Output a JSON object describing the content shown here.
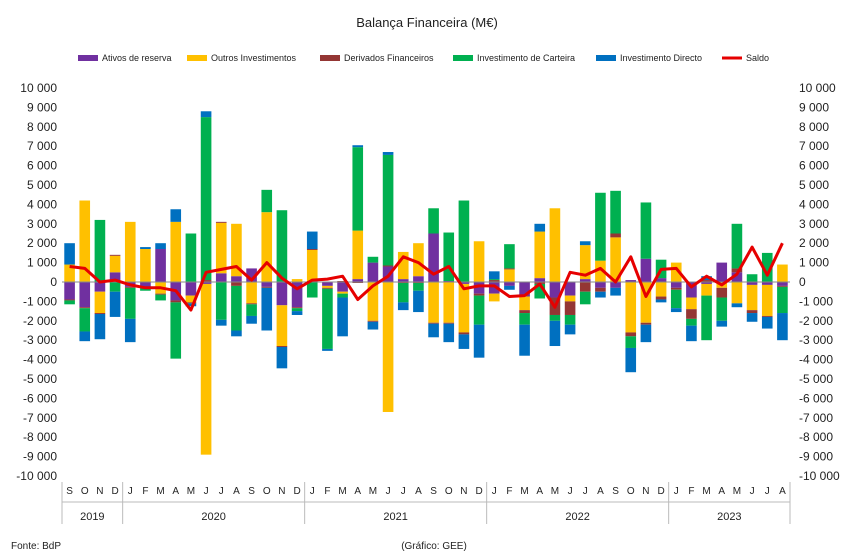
{
  "chart_data": {
    "type": "bar",
    "title": "Balança Financeira (M€)",
    "source": "Fonte: BdP",
    "credit": "(Gráfico: GEE)",
    "ylim": [
      -10000,
      10000
    ],
    "yticks": [
      -10000,
      -9000,
      -8000,
      -7000,
      -6000,
      -5000,
      -4000,
      -3000,
      -2000,
      -1000,
      0,
      1000,
      2000,
      3000,
      4000,
      5000,
      6000,
      7000,
      8000,
      9000,
      10000
    ],
    "ytick_labels": [
      "-10 000",
      "-9 000",
      "-8 000",
      "-7 000",
      "-6 000",
      "-5 000",
      "-4 000",
      "-3 000",
      "-2 000",
      "-1 000",
      "0",
      "1 000",
      "2 000",
      "3 000",
      "4 000",
      "5 000",
      "6 000",
      "7 000",
      "8 000",
      "9 000",
      "10 000"
    ],
    "legend_position": "top",
    "grid": false,
    "categories": [
      "S",
      "O",
      "N",
      "D",
      "J",
      "F",
      "M",
      "A",
      "M",
      "J",
      "J",
      "A",
      "S",
      "O",
      "N",
      "D",
      "J",
      "F",
      "M",
      "A",
      "M",
      "J",
      "J",
      "A",
      "S",
      "O",
      "N",
      "D",
      "J",
      "F",
      "M",
      "A",
      "M",
      "J",
      "J",
      "A",
      "S",
      "O",
      "N",
      "D",
      "J",
      "F",
      "M",
      "A",
      "M",
      "J",
      "J",
      "A"
    ],
    "years": [
      {
        "label": "2019",
        "start": 0,
        "end": 4
      },
      {
        "label": "2020",
        "start": 4,
        "end": 16
      },
      {
        "label": "2021",
        "start": 16,
        "end": 28
      },
      {
        "label": "2022",
        "start": 28,
        "end": 40
      },
      {
        "label": "2023",
        "start": 40,
        "end": 48
      }
    ],
    "series": [
      {
        "name": "Ativos de reserva",
        "color": "#7030A0",
        "values": [
          -900,
          -1300,
          -500,
          500,
          -250,
          -250,
          1700,
          -950,
          -700,
          -100,
          450,
          300,
          700,
          -250,
          -1200,
          -1300,
          50,
          -200,
          -500,
          150,
          1000,
          800,
          150,
          300,
          2500,
          50,
          -100,
          -600,
          -600,
          -200,
          -750,
          200,
          -800,
          -700,
          150,
          -300,
          -300,
          100,
          1200,
          200,
          -300,
          -800,
          -100,
          1000,
          500,
          -150,
          -150,
          -200
        ]
      },
      {
        "name": "Outros Investimentos",
        "color": "#FFC000",
        "values": [
          900,
          4200,
          -1100,
          850,
          3100,
          1700,
          -600,
          3100,
          -350,
          -8800,
          2600,
          2700,
          -1100,
          3600,
          -2100,
          150,
          1600,
          -100,
          -100,
          2500,
          -2000,
          -6700,
          1400,
          1700,
          -2100,
          -2100,
          -2500,
          2100,
          -400,
          650,
          -700,
          2400,
          3800,
          -300,
          1750,
          1100,
          2300,
          -2600,
          -2100,
          -750,
          1000,
          -600,
          -600,
          -300,
          -1100,
          -1300,
          -1600,
          900
        ]
      },
      {
        "name": "Derivados Financeiros",
        "color": "#943634",
        "values": [
          -50,
          -50,
          -50,
          50,
          -50,
          -50,
          -50,
          -100,
          -50,
          100,
          50,
          -200,
          -50,
          -50,
          -50,
          -50,
          50,
          -50,
          50,
          -50,
          -50,
          50,
          -50,
          -50,
          -50,
          -50,
          -100,
          -100,
          100,
          50,
          -150,
          -100,
          -900,
          -700,
          -500,
          -200,
          200,
          -200,
          -100,
          -150,
          -100,
          -500,
          100,
          -500,
          200,
          -150,
          -50,
          -50
        ]
      },
      {
        "name": "Investimento de Carteira",
        "color": "#00B050",
        "values": [
          -200,
          -1200,
          3200,
          -500,
          -1600,
          -150,
          -300,
          -2900,
          2500,
          8400,
          -1950,
          -2300,
          -600,
          1150,
          3700,
          -150,
          -800,
          -3100,
          -200,
          4300,
          300,
          5700,
          -1000,
          -400,
          1300,
          2500,
          4200,
          -1500,
          50,
          1250,
          -600,
          -750,
          -300,
          -500,
          -650,
          3500,
          2200,
          -600,
          2900,
          950,
          -950,
          -350,
          -2300,
          -1200,
          2300,
          400,
          1500,
          -1350
        ]
      },
      {
        "name": "Investimento Directo",
        "color": "#0070C0",
        "values": [
          1100,
          -500,
          -1300,
          -1300,
          -1200,
          100,
          300,
          650,
          -150,
          300,
          -300,
          -300,
          -400,
          -2200,
          -1100,
          -200,
          900,
          -100,
          -2000,
          100,
          -400,
          150,
          -400,
          -1100,
          -700,
          -950,
          -750,
          -1700,
          400,
          -200,
          -1600,
          400,
          -1300,
          -500,
          200,
          -300,
          -400,
          -1250,
          -900,
          -150,
          -200,
          -800,
          200,
          -300,
          -200,
          -450,
          -600,
          -1400
        ]
      }
    ],
    "line": {
      "name": "Saldo",
      "color": "#E60000",
      "values": [
        800,
        700,
        0,
        100,
        -150,
        -300,
        -300,
        -450,
        -1450,
        500,
        650,
        800,
        100,
        1000,
        200,
        -350,
        100,
        150,
        300,
        -900,
        -200,
        300,
        1300,
        1000,
        400,
        800,
        -350,
        -200,
        -200,
        -750,
        -700,
        -100,
        -1300,
        500,
        350,
        700,
        0,
        1300,
        -750,
        650,
        700,
        -250,
        300,
        -150,
        400,
        1800,
        350,
        2000
      ]
    }
  }
}
